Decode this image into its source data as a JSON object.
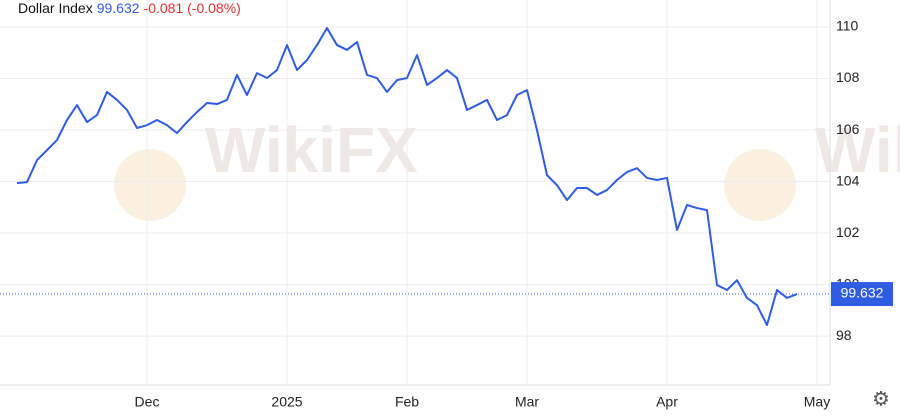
{
  "chart_data": {
    "type": "line",
    "title": "Dollar Index",
    "price": 99.632,
    "change": "-0.081 (-0.08%)",
    "watermark": "WikiFX",
    "categories": [
      null,
      null,
      null,
      null,
      null,
      null,
      null,
      null,
      null,
      null,
      null,
      null,
      null,
      "Dec",
      null,
      null,
      null,
      null,
      null,
      null,
      null,
      null,
      null,
      null,
      null,
      null,
      null,
      "2025",
      null,
      null,
      null,
      null,
      null,
      null,
      null,
      null,
      null,
      null,
      null,
      "Feb",
      null,
      null,
      null,
      null,
      null,
      null,
      null,
      null,
      null,
      null,
      null,
      "Mar",
      null,
      null,
      null,
      null,
      null,
      null,
      null,
      null,
      null,
      null,
      null,
      null,
      null,
      "Apr",
      null,
      null,
      null,
      null,
      null,
      null,
      null,
      null,
      null,
      null,
      null,
      null,
      null,
      null,
      "May"
    ],
    "series": [
      {
        "name": "Dollar Index",
        "color": "#2f5ce0",
        "values": [
          103.94,
          103.98,
          104.83,
          105.22,
          105.61,
          106.39,
          106.97,
          106.31,
          106.58,
          107.48,
          107.17,
          106.78,
          106.08,
          106.19,
          106.39,
          106.19,
          105.88,
          106.31,
          106.7,
          107.05,
          107.01,
          107.17,
          108.14,
          107.36,
          108.21,
          108.02,
          108.33,
          109.3,
          108.33,
          108.72,
          109.3,
          109.96,
          109.3,
          109.11,
          109.42,
          108.14,
          108.02,
          107.48,
          107.94,
          108.02,
          108.91,
          107.75,
          108.02,
          108.33,
          108.02,
          106.78,
          106.97,
          107.17,
          106.39,
          106.58,
          107.36,
          107.55,
          106.0,
          104.25,
          103.86,
          103.28,
          103.75,
          103.75,
          103.48,
          103.67,
          104.06,
          104.37,
          104.52,
          104.14,
          104.06,
          104.14,
          102.12,
          103.09,
          102.97,
          102.89,
          99.98,
          99.79,
          100.17,
          99.48,
          99.2,
          98.43,
          99.79,
          99.48,
          99.632,
          null,
          null
        ]
      }
    ],
    "ylim": [
      96.1,
      111.05
    ],
    "yticks": [
      98,
      100,
      102,
      104,
      106,
      108,
      110
    ],
    "grid": true
  }
}
